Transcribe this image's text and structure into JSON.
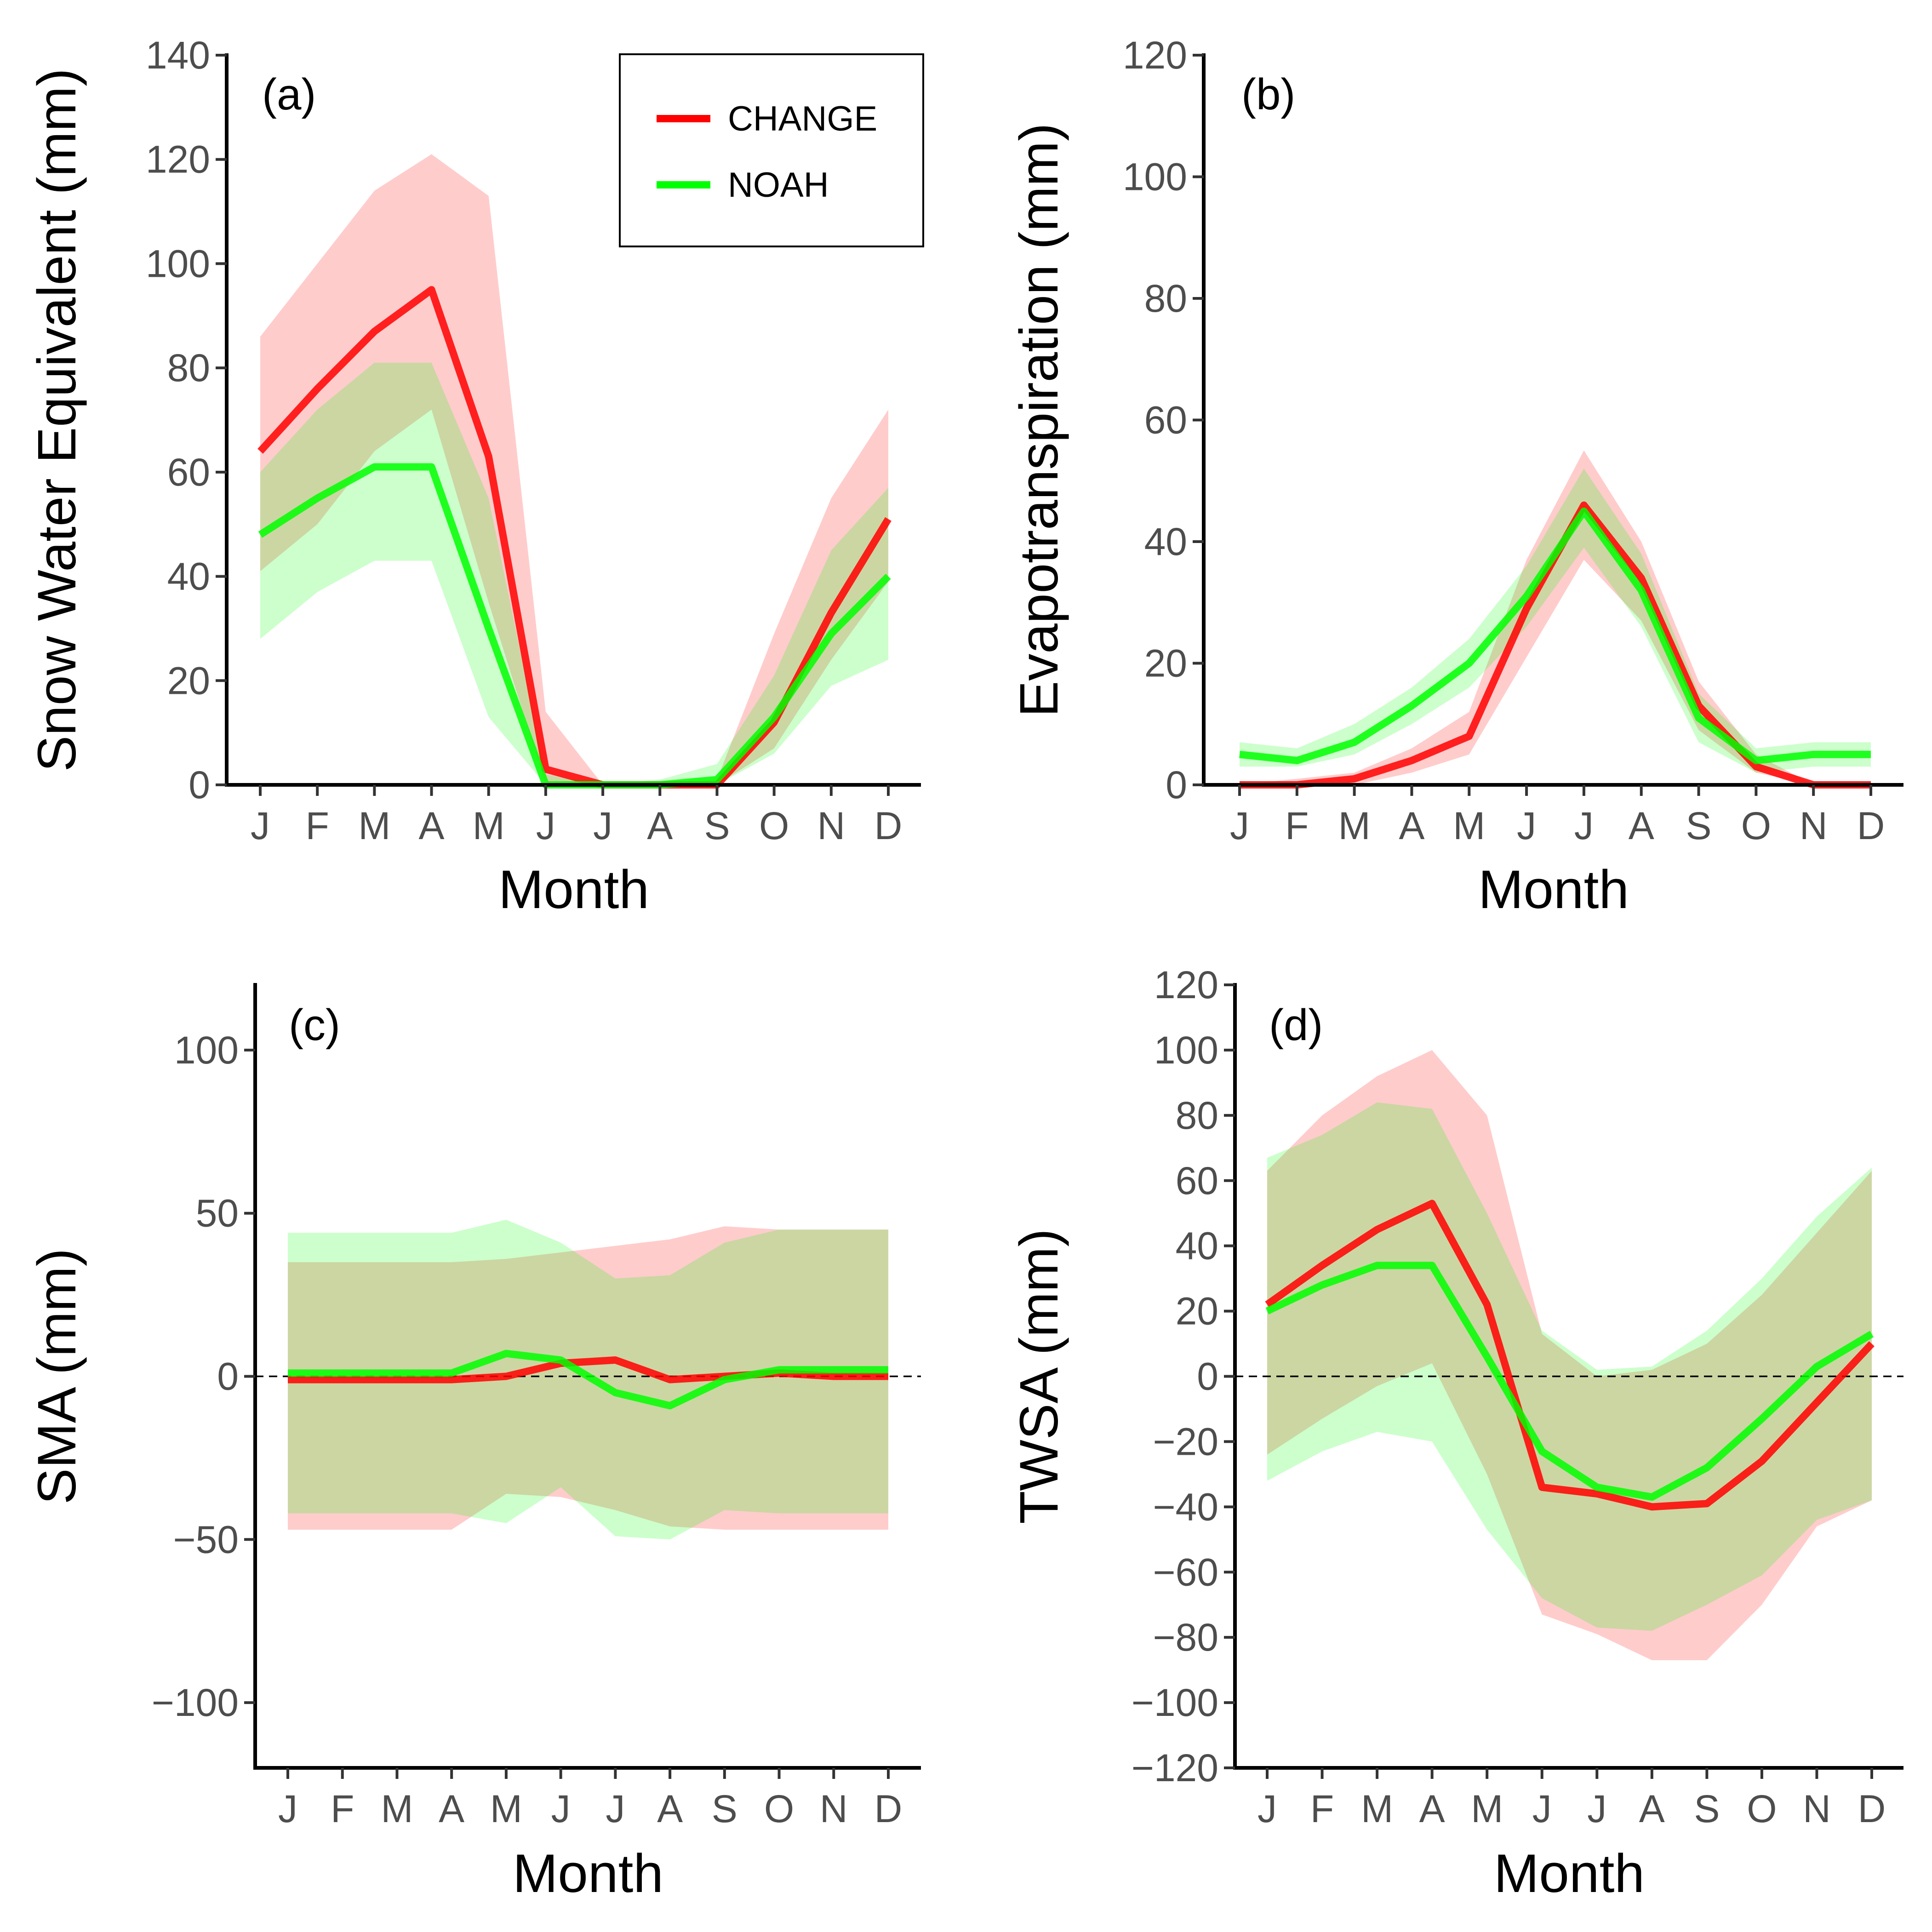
{
  "legend": {
    "items": [
      {
        "label": "CHANGE",
        "color": "#ff0000"
      },
      {
        "label": "NOAH",
        "color": "#00ff00"
      }
    ]
  },
  "chart_data": [
    {
      "panel": "(a)",
      "type": "line",
      "categories": [
        "J",
        "F",
        "M",
        "A",
        "M",
        "J",
        "J",
        "A",
        "S",
        "O",
        "N",
        "D"
      ],
      "xlabel": "Month",
      "ylabel": "Snow Water Equivalent (mm)",
      "ylim": [
        0,
        140
      ],
      "yticks": [
        0,
        20,
        40,
        60,
        80,
        100,
        120,
        140
      ],
      "zero_line": false,
      "legend": "top-right",
      "series": [
        {
          "name": "CHANGE",
          "color": "#ff0000",
          "values": [
            64,
            76,
            87,
            95,
            63,
            3,
            0,
            0,
            0,
            12,
            33,
            51
          ],
          "lower": [
            41,
            50,
            64,
            72,
            35,
            0,
            0,
            0,
            0,
            7,
            24,
            39
          ],
          "upper": [
            86,
            100,
            114,
            121,
            113,
            14,
            0,
            0,
            1,
            29,
            55,
            72
          ]
        },
        {
          "name": "NOAH",
          "color": "#00ff00",
          "values": [
            48,
            55,
            61,
            61,
            30,
            0,
            0,
            0,
            1,
            13,
            29,
            40
          ],
          "lower": [
            28,
            37,
            43,
            43,
            13,
            0,
            0,
            0,
            0,
            6,
            19,
            24
          ],
          "upper": [
            60,
            72,
            81,
            81,
            55,
            2,
            0,
            1,
            4,
            21,
            45,
            57
          ]
        }
      ]
    },
    {
      "panel": "(b)",
      "type": "line",
      "categories": [
        "J",
        "F",
        "M",
        "A",
        "M",
        "J",
        "J",
        "A",
        "S",
        "O",
        "N",
        "D"
      ],
      "xlabel": "Month",
      "ylabel": "Evapotranspiration (mm)",
      "ylim": [
        0,
        120
      ],
      "yticks": [
        0,
        20,
        40,
        60,
        80,
        100,
        120
      ],
      "zero_line": false,
      "series": [
        {
          "name": "CHANGE",
          "color": "#ff0000",
          "values": [
            0,
            0,
            1,
            4,
            8,
            29,
            46,
            34,
            13,
            3,
            0,
            0
          ],
          "lower": [
            0,
            0,
            0,
            2,
            5,
            21,
            37,
            27,
            9,
            2,
            0,
            0
          ],
          "upper": [
            0,
            1,
            2,
            6,
            12,
            37,
            55,
            40,
            17,
            5,
            0,
            0
          ]
        },
        {
          "name": "NOAH",
          "color": "#00ff00",
          "values": [
            5,
            4,
            7,
            13,
            20,
            31,
            45,
            32,
            11,
            4,
            5,
            5
          ],
          "lower": [
            3,
            3,
            5,
            10,
            16,
            26,
            39,
            26,
            7,
            2,
            3,
            3
          ],
          "upper": [
            7,
            6,
            10,
            16,
            24,
            36,
            52,
            38,
            15,
            6,
            7,
            7
          ]
        }
      ]
    },
    {
      "panel": "(c)",
      "type": "line",
      "categories": [
        "J",
        "F",
        "M",
        "A",
        "M",
        "J",
        "J",
        "A",
        "S",
        "O",
        "N",
        "D"
      ],
      "xlabel": "Month",
      "ylabel": "SMA (mm)",
      "ylim": [
        -120,
        120
      ],
      "yticks": [
        -100,
        -50,
        0,
        50,
        100
      ],
      "zero_line": true,
      "series": [
        {
          "name": "CHANGE",
          "color": "#ff0000",
          "values": [
            -1,
            -1,
            -1,
            -1,
            0,
            4,
            5,
            -1,
            0,
            1,
            0,
            0
          ],
          "lower": [
            -47,
            -47,
            -47,
            -47,
            -36,
            -37,
            -41,
            -46,
            -47,
            -47,
            -47,
            -47
          ],
          "upper": [
            35,
            35,
            35,
            35,
            36,
            38,
            40,
            42,
            46,
            45,
            45,
            45
          ]
        },
        {
          "name": "NOAH",
          "color": "#00ff00",
          "values": [
            1,
            1,
            1,
            1,
            7,
            5,
            -5,
            -9,
            -1,
            2,
            2,
            2
          ],
          "lower": [
            -42,
            -42,
            -42,
            -42,
            -45,
            -34,
            -49,
            -50,
            -41,
            -42,
            -42,
            -42
          ],
          "upper": [
            44,
            44,
            44,
            44,
            48,
            41,
            30,
            31,
            41,
            45,
            45,
            45
          ]
        }
      ]
    },
    {
      "panel": "(d)",
      "type": "line",
      "categories": [
        "J",
        "F",
        "M",
        "A",
        "M",
        "J",
        "J",
        "A",
        "S",
        "O",
        "N",
        "D"
      ],
      "xlabel": "Month",
      "ylabel": "TWSA (mm)",
      "ylim": [
        -120,
        120
      ],
      "yticks": [
        -120,
        -100,
        -80,
        -60,
        -40,
        -20,
        0,
        20,
        40,
        60,
        80,
        100,
        120
      ],
      "zero_line": true,
      "series": [
        {
          "name": "CHANGE",
          "color": "#ff0000",
          "values": [
            22,
            34,
            45,
            53,
            22,
            -34,
            -36,
            -40,
            -39,
            -26,
            -8,
            10
          ],
          "lower": [
            -24,
            -13,
            -3,
            4,
            -30,
            -73,
            -79,
            -87,
            -87,
            -70,
            -46,
            -38
          ],
          "upper": [
            63,
            80,
            92,
            100,
            80,
            13,
            0,
            2,
            10,
            25,
            44,
            63
          ]
        },
        {
          "name": "NOAH",
          "color": "#00ff00",
          "values": [
            20,
            28,
            34,
            34,
            6,
            -23,
            -34,
            -37,
            -28,
            -13,
            3,
            13
          ],
          "lower": [
            -32,
            -23,
            -17,
            -20,
            -47,
            -68,
            -77,
            -78,
            -70,
            -61,
            -44,
            -38
          ],
          "upper": [
            67,
            74,
            84,
            82,
            50,
            14,
            2,
            3,
            14,
            30,
            49,
            64
          ]
        }
      ]
    }
  ]
}
